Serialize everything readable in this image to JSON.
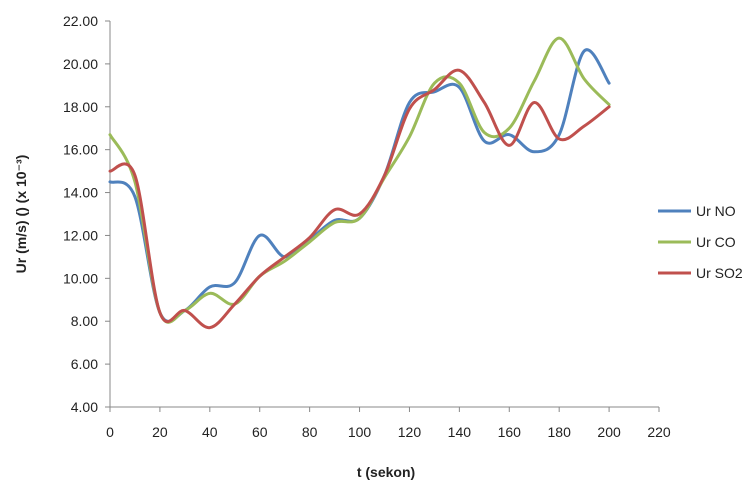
{
  "chart_data": {
    "type": "line",
    "xlabel": "t (sekon)",
    "ylabel": "Ur (m/s) () (x 10⁻³)",
    "xlim": [
      0,
      220
    ],
    "ylim": [
      4,
      22
    ],
    "x_ticks": [
      0,
      20,
      40,
      60,
      80,
      100,
      120,
      140,
      160,
      180,
      200,
      220
    ],
    "y_ticks": [
      "4.00",
      "6.00",
      "8.00",
      "10.00",
      "12.00",
      "14.00",
      "16.00",
      "18.00",
      "20.00",
      "22.00"
    ],
    "grid": false,
    "legend_position": "right",
    "series": [
      {
        "name": "Ur NO",
        "color": "#4f81bd",
        "x": [
          0,
          10,
          20,
          30,
          40,
          50,
          60,
          70,
          80,
          90,
          100,
          110,
          120,
          130,
          140,
          150,
          160,
          170,
          180,
          190,
          200
        ],
        "y": [
          14.5,
          13.8,
          8.4,
          8.5,
          9.6,
          9.8,
          12.0,
          11.0,
          11.8,
          12.7,
          12.8,
          14.8,
          18.2,
          18.7,
          18.9,
          16.4,
          16.7,
          15.9,
          16.7,
          20.6,
          19.1
        ]
      },
      {
        "name": "Ur CO",
        "color": "#9bbb59",
        "x": [
          0,
          10,
          20,
          30,
          40,
          50,
          60,
          70,
          80,
          90,
          100,
          110,
          120,
          130,
          140,
          150,
          160,
          170,
          180,
          190,
          200
        ],
        "y": [
          16.7,
          14.5,
          8.4,
          8.5,
          9.3,
          8.8,
          10.1,
          10.8,
          11.7,
          12.6,
          12.8,
          14.7,
          16.6,
          19.1,
          19.1,
          16.8,
          17.0,
          19.2,
          21.2,
          19.3,
          18.1
        ]
      },
      {
        "name": "Ur SO2",
        "color": "#c0504d",
        "x": [
          0,
          10,
          20,
          30,
          40,
          50,
          60,
          70,
          80,
          90,
          100,
          110,
          120,
          130,
          140,
          150,
          160,
          170,
          180,
          190,
          200
        ],
        "y": [
          15.0,
          14.8,
          8.4,
          8.5,
          7.7,
          8.8,
          10.1,
          11.0,
          11.9,
          13.2,
          13.0,
          14.8,
          17.9,
          18.8,
          19.7,
          18.2,
          16.2,
          18.2,
          16.5,
          17.1,
          18.0
        ]
      }
    ]
  }
}
